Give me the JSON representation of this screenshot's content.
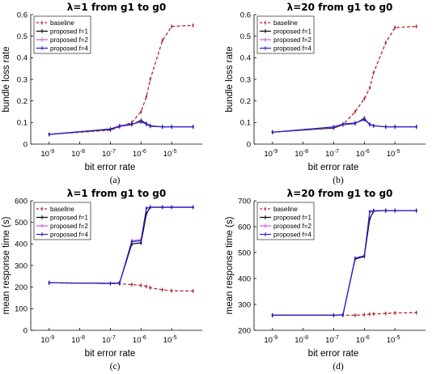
{
  "chart_data": [
    {
      "type": "line",
      "panel": "(a)",
      "title": "λ=1 from g1 to g0",
      "xlabel": "bit error rate",
      "ylabel": "bundle loss rate",
      "x_scale": "log",
      "xlim": [
        2.5e-10,
        0.0001
      ],
      "ylim": [
        0,
        0.6
      ],
      "x_ticks": [
        1e-09,
        1e-08,
        1e-07,
        1e-06,
        1e-05
      ],
      "x_tick_labels": [
        "10-9",
        "10-8",
        "10-7",
        "10-6",
        "10-5"
      ],
      "y_ticks": [
        0,
        0.1,
        0.2,
        0.3,
        0.4,
        0.5,
        0.6
      ],
      "y_tick_labels": [
        "0",
        "0.1",
        "0.2",
        "0.3",
        "0.4",
        "0.5",
        "0.6"
      ],
      "legend_position": "top-left",
      "x": [
        1e-09,
        1e-07,
        2e-07,
        5e-07,
        1e-06,
        1.5e-06,
        2e-06,
        5e-06,
        1e-05,
        5e-05
      ],
      "series": [
        {
          "name": "baseline",
          "color": "#b5282d",
          "dashed": true,
          "values": [
            0.045,
            0.065,
            0.08,
            0.1,
            0.15,
            0.22,
            0.3,
            0.48,
            0.545,
            0.55
          ]
        },
        {
          "name": "proposed f=1",
          "color": "#000000",
          "dashed": false,
          "values": [
            0.045,
            0.068,
            0.082,
            0.09,
            0.11,
            0.095,
            0.085,
            0.08,
            0.08,
            0.08
          ]
        },
        {
          "name": "proposed f=2",
          "color": "#c65bd9",
          "dashed": false,
          "values": [
            0.045,
            0.07,
            0.083,
            0.092,
            0.105,
            0.093,
            0.083,
            0.08,
            0.08,
            0.08
          ]
        },
        {
          "name": "proposed f=4",
          "color": "#1f1fcc",
          "dashed": false,
          "values": [
            0.045,
            0.07,
            0.085,
            0.093,
            0.103,
            0.092,
            0.083,
            0.08,
            0.08,
            0.08
          ]
        }
      ]
    },
    {
      "type": "line",
      "panel": "(b)",
      "title": "λ=20 from g1 to g0",
      "xlabel": "bit error rate",
      "ylabel": "bundle loss rate",
      "x_scale": "log",
      "xlim": [
        2.5e-10,
        0.0001
      ],
      "ylim": [
        0,
        0.6
      ],
      "x_ticks": [
        1e-09,
        1e-08,
        1e-07,
        1e-06,
        1e-05
      ],
      "x_tick_labels": [
        "10-9",
        "10-8",
        "10-7",
        "10-6",
        "10-5"
      ],
      "y_ticks": [
        0,
        0.1,
        0.2,
        0.3,
        0.4,
        0.5,
        0.6
      ],
      "y_tick_labels": [
        "0",
        "0.1",
        "0.2",
        "0.3",
        "0.4",
        "0.5",
        "0.6"
      ],
      "legend_position": "top-left",
      "x": [
        1e-09,
        1e-07,
        2e-07,
        5e-07,
        1e-06,
        1.5e-06,
        2e-06,
        5e-06,
        1e-05,
        5e-05
      ],
      "series": [
        {
          "name": "baseline",
          "color": "#b5282d",
          "dashed": true,
          "values": [
            0.055,
            0.075,
            0.09,
            0.15,
            0.21,
            0.26,
            0.33,
            0.47,
            0.54,
            0.545
          ]
        },
        {
          "name": "proposed f=1",
          "color": "#000000",
          "dashed": false,
          "values": [
            0.055,
            0.075,
            0.09,
            0.095,
            0.12,
            0.09,
            0.085,
            0.08,
            0.08,
            0.08
          ]
        },
        {
          "name": "proposed f=2",
          "color": "#c65bd9",
          "dashed": false,
          "values": [
            0.055,
            0.078,
            0.092,
            0.097,
            0.115,
            0.092,
            0.085,
            0.08,
            0.08,
            0.08
          ]
        },
        {
          "name": "proposed f=4",
          "color": "#1f1fcc",
          "dashed": false,
          "values": [
            0.055,
            0.08,
            0.093,
            0.098,
            0.113,
            0.092,
            0.085,
            0.08,
            0.08,
            0.08
          ]
        }
      ]
    },
    {
      "type": "line",
      "panel": "(c)",
      "title": "λ=1 from g1 to g0",
      "xlabel": "bit error rate",
      "ylabel": "mean response time (s)",
      "x_scale": "log",
      "xlim": [
        2.5e-10,
        0.0001
      ],
      "ylim": [
        0,
        600
      ],
      "x_ticks": [
        1e-09,
        1e-08,
        1e-07,
        1e-06,
        1e-05
      ],
      "x_tick_labels": [
        "10-9",
        "10-8",
        "10-7",
        "10-6",
        "10-5"
      ],
      "y_ticks": [
        0,
        100,
        200,
        300,
        400,
        500,
        600
      ],
      "y_tick_labels": [
        "0",
        "100",
        "200",
        "300",
        "400",
        "500",
        "600"
      ],
      "legend_position": "top-left",
      "x": [
        1e-09,
        1e-07,
        2e-07,
        5e-07,
        1e-06,
        1.5e-06,
        2e-06,
        5e-06,
        1e-05,
        5e-05
      ],
      "series": [
        {
          "name": "baseline",
          "color": "#b5282d",
          "dashed": true,
          "values": [
            220,
            217,
            215,
            212,
            208,
            203,
            197,
            188,
            183,
            182
          ]
        },
        {
          "name": "proposed f=1",
          "color": "#000000",
          "dashed": false,
          "values": [
            220,
            217,
            220,
            400,
            405,
            540,
            570,
            570,
            570,
            570
          ]
        },
        {
          "name": "proposed f=2",
          "color": "#c65bd9",
          "dashed": false,
          "values": [
            220,
            217,
            220,
            415,
            420,
            565,
            570,
            570,
            570,
            570
          ]
        },
        {
          "name": "proposed f=4",
          "color": "#1f1fcc",
          "dashed": false,
          "values": [
            220,
            217,
            220,
            410,
            415,
            565,
            570,
            570,
            570,
            570
          ]
        }
      ]
    },
    {
      "type": "line",
      "panel": "(d)",
      "title": "λ=20 from g1 to g0",
      "xlabel": "bit error rate",
      "ylabel": "mean response time (s)",
      "x_scale": "log",
      "xlim": [
        2.5e-10,
        0.0001
      ],
      "ylim": [
        200,
        700
      ],
      "x_ticks": [
        1e-09,
        1e-08,
        1e-07,
        1e-06,
        1e-05
      ],
      "x_tick_labels": [
        "10-9",
        "10-8",
        "10-7",
        "10-6",
        "10-5"
      ],
      "y_ticks": [
        200,
        300,
        400,
        500,
        600,
        700
      ],
      "y_tick_labels": [
        "200",
        "300",
        "400",
        "500",
        "600",
        "700"
      ],
      "legend_position": "top-left",
      "x": [
        1e-09,
        1e-07,
        2e-07,
        5e-07,
        1e-06,
        1.5e-06,
        2e-06,
        5e-06,
        1e-05,
        5e-05
      ],
      "series": [
        {
          "name": "baseline",
          "color": "#b5282d",
          "dashed": true,
          "values": [
            258,
            258,
            258,
            258,
            260,
            262,
            263,
            265,
            267,
            268
          ]
        },
        {
          "name": "proposed f=1",
          "color": "#000000",
          "dashed": false,
          "values": [
            258,
            258,
            260,
            475,
            485,
            630,
            660,
            662,
            662,
            662
          ]
        },
        {
          "name": "proposed f=2",
          "color": "#c65bd9",
          "dashed": false,
          "values": [
            258,
            258,
            260,
            478,
            488,
            655,
            662,
            662,
            662,
            662
          ]
        },
        {
          "name": "proposed f=4",
          "color": "#1f1fcc",
          "dashed": false,
          "values": [
            258,
            258,
            260,
            478,
            488,
            658,
            662,
            662,
            662,
            662
          ]
        }
      ]
    }
  ]
}
